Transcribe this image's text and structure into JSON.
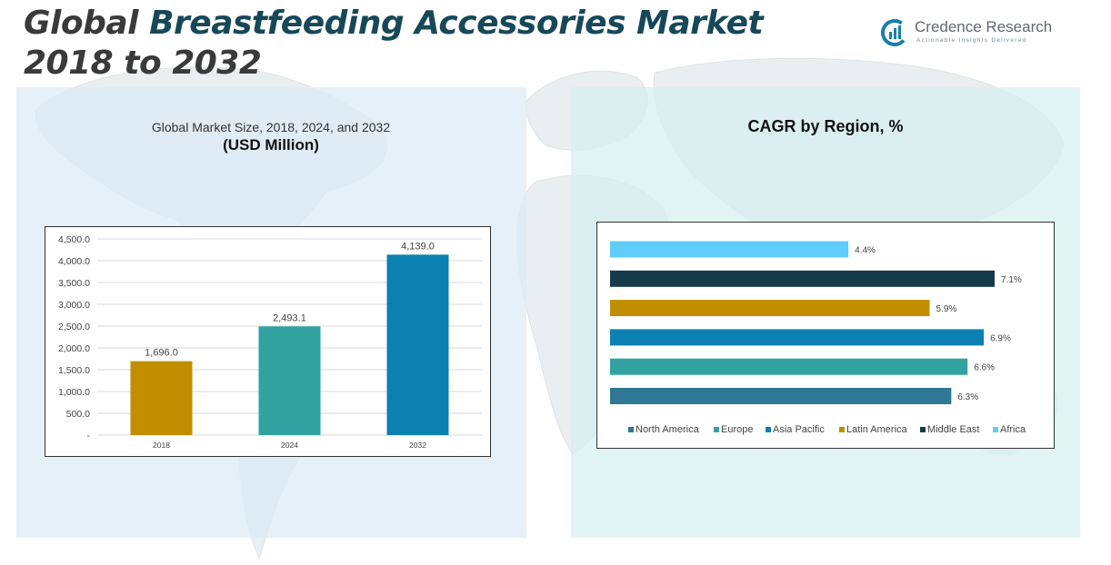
{
  "title": {
    "part1": "Global",
    "part2": "Breastfeeding Accessories Market",
    "part3": "2018 to 2032"
  },
  "logo": {
    "name": "Credence Research",
    "tagline": "Actionable Insights Delivered",
    "color": "#1a7fa8"
  },
  "chart_data": [
    {
      "type": "bar",
      "title": "Global Market Size, 2018, 2024, and 2032",
      "subtitle": "(USD Million)",
      "categories": [
        "2018",
        "2024",
        "2032"
      ],
      "values": [
        1696.0,
        2493.1,
        4139.0
      ],
      "value_labels": [
        "1,696.0",
        "2,493.1",
        "4,139.0"
      ],
      "colors": [
        "#c08e00",
        "#32a2a1",
        "#0d80b2"
      ],
      "ylim": [
        0,
        4500
      ],
      "yticks": [
        0,
        500,
        1000,
        1500,
        2000,
        2500,
        3000,
        3500,
        4000,
        4500
      ],
      "ytick_labels": [
        "-",
        "500.0",
        "1,000.0",
        "1,500.0",
        "2,000.0",
        "2,500.0",
        "3,000.0",
        "3,500.0",
        "4,000.0",
        "4,500.0"
      ],
      "grid": true,
      "legend": "none"
    },
    {
      "type": "bar",
      "orientation": "horizontal",
      "title": "CAGR by Region, %",
      "categories": [
        "North America",
        "Europe",
        "Asia Pacific",
        "Latin America",
        "Middle East",
        "Africa"
      ],
      "values": [
        6.3,
        6.6,
        6.9,
        5.9,
        7.1,
        4.4
      ],
      "value_labels": [
        "6.3%",
        "6.6%",
        "6.9%",
        "5.9%",
        "7.1%",
        "4.4%"
      ],
      "colors": [
        "#2e7896",
        "#32a2a1",
        "#0d80b2",
        "#c08e00",
        "#163b4a",
        "#5fcdf7"
      ],
      "xlim": [
        0,
        7.5
      ],
      "grid": false,
      "legend": "bottom"
    }
  ]
}
